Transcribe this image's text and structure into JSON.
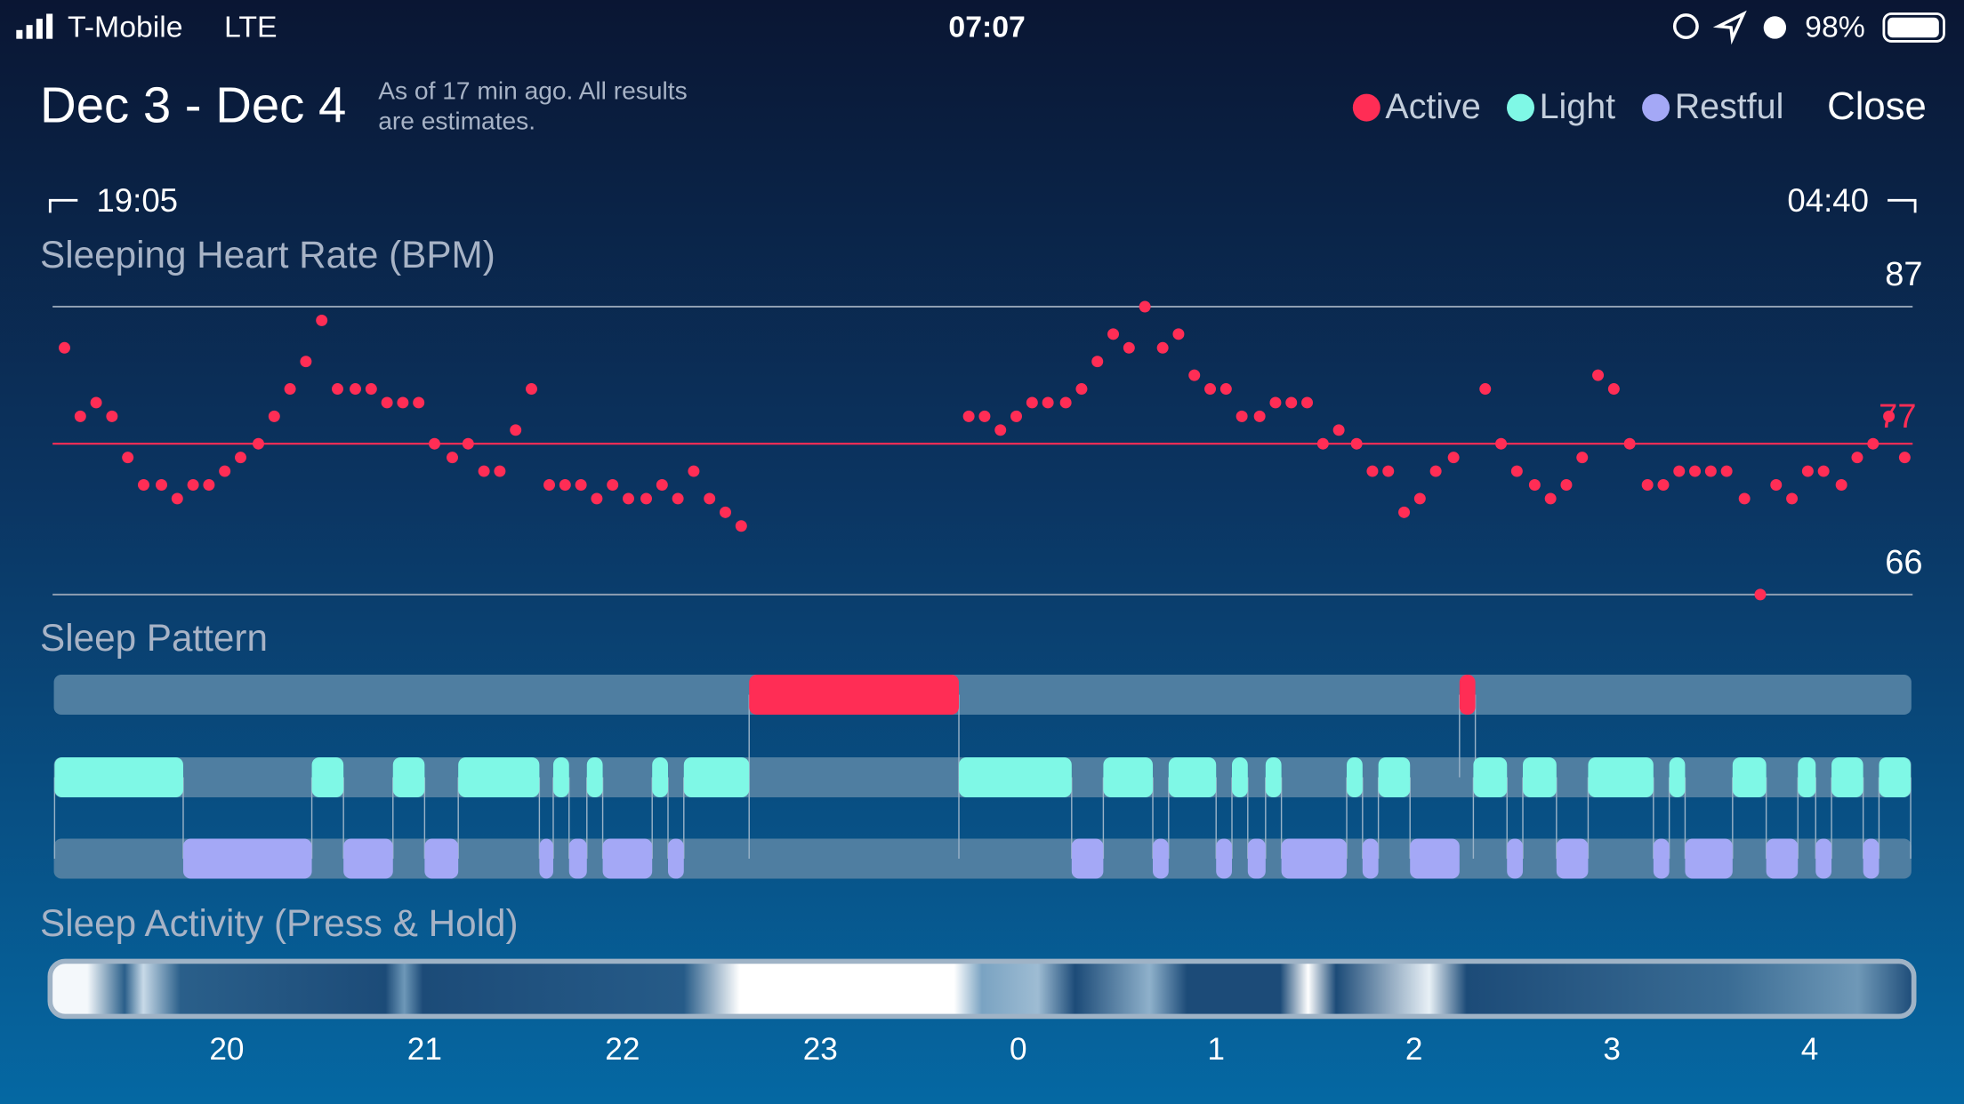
{
  "status_bar": {
    "carrier": "T-Mobile",
    "network": "LTE",
    "time": "07:07",
    "battery": "98%"
  },
  "header": {
    "title": "Dec 3 - Dec 4",
    "note": [
      "As of 17 min ago. All results",
      "are estimates."
    ],
    "close": "Close"
  },
  "range": {
    "start": "19:05",
    "end": "04:40"
  },
  "chart_data": [
    {
      "type": "scatter",
      "title": "Sleeping Heart Rate (BPM)",
      "color": "#ff2d55",
      "x": [
        19.18,
        19.26,
        19.34,
        19.42,
        19.5,
        19.58,
        19.67,
        19.75,
        19.83,
        19.91,
        19.99,
        20.07,
        20.16,
        20.24,
        20.32,
        20.4,
        20.48,
        20.56,
        20.65,
        20.73,
        20.81,
        20.89,
        20.97,
        21.05,
        21.14,
        21.22,
        21.3,
        21.38,
        21.46,
        21.54,
        21.63,
        21.71,
        21.79,
        21.87,
        21.95,
        22.03,
        22.12,
        22.2,
        22.28,
        22.36,
        22.44,
        22.52,
        22.6,
        23.75,
        23.83,
        23.91,
        23.99,
        24.07,
        24.15,
        24.24,
        24.32,
        24.4,
        24.48,
        24.56,
        24.64,
        24.73,
        24.81,
        24.89,
        24.97,
        25.05,
        25.13,
        25.22,
        25.3,
        25.38,
        25.46,
        25.54,
        25.62,
        25.71,
        25.79,
        25.87,
        25.95,
        26.03,
        26.11,
        26.2,
        26.36,
        26.44,
        26.52,
        26.61,
        26.69,
        26.77,
        26.85,
        26.93,
        27.01,
        27.09,
        27.18,
        27.26,
        27.34,
        27.42,
        27.5,
        27.58,
        27.67,
        27.75,
        27.83,
        27.91,
        27.99,
        28.07,
        28.16,
        28.24,
        28.32,
        28.4,
        28.48
      ],
      "y": [
        84,
        79,
        80,
        79,
        76,
        74,
        74,
        73,
        74,
        74,
        75,
        76,
        77,
        79,
        81,
        83,
        86,
        81,
        81,
        81,
        80,
        80,
        80,
        77,
        76,
        77,
        75,
        75,
        78,
        81,
        74,
        74,
        74,
        73,
        74,
        73,
        73,
        74,
        73,
        75,
        73,
        72,
        71,
        79,
        79,
        78,
        79,
        80,
        80,
        80,
        81,
        83,
        85,
        84,
        87,
        84,
        85,
        82,
        81,
        81,
        79,
        79,
        80,
        80,
        80,
        77,
        78,
        77,
        75,
        75,
        72,
        73,
        75,
        76,
        81,
        77,
        75,
        74,
        73,
        74,
        76,
        82,
        81,
        77,
        74,
        74,
        75,
        75,
        75,
        75,
        73,
        66,
        74,
        73,
        75,
        75,
        74,
        76,
        77,
        79,
        76
      ],
      "xlim": [
        19.12,
        28.52
      ],
      "ylim": [
        66,
        87
      ],
      "yticks": [
        66,
        87
      ],
      "reference_line": 77
    },
    {
      "type": "timeline",
      "title": "Sleep Pattern",
      "xlim": [
        19.12,
        28.52
      ],
      "stages": [
        {
          "name": "Active",
          "color": "#ff2d55",
          "segments": [
            [
              22.64,
              23.7
            ],
            [
              26.23,
              26.31
            ]
          ]
        },
        {
          "name": "Light",
          "color": "#7ff8e6",
          "segments": [
            [
              19.13,
              19.78
            ],
            [
              20.43,
              20.59
            ],
            [
              20.84,
              21.0
            ],
            [
              21.17,
              21.58
            ],
            [
              21.65,
              21.73
            ],
            [
              21.82,
              21.9
            ],
            [
              22.15,
              22.23
            ],
            [
              22.31,
              22.64
            ],
            [
              23.7,
              24.27
            ],
            [
              24.43,
              24.68
            ],
            [
              24.76,
              25.0
            ],
            [
              25.08,
              25.16
            ],
            [
              25.25,
              25.33
            ],
            [
              25.66,
              25.74
            ],
            [
              25.82,
              25.98
            ],
            [
              26.3,
              26.47
            ],
            [
              26.55,
              26.72
            ],
            [
              26.88,
              27.21
            ],
            [
              27.29,
              27.37
            ],
            [
              27.61,
              27.78
            ],
            [
              27.94,
              28.03
            ],
            [
              28.11,
              28.27
            ],
            [
              28.35,
              28.51
            ]
          ]
        },
        {
          "name": "Restful",
          "color": "#a4a8f6",
          "segments": [
            [
              19.78,
              20.43
            ],
            [
              20.59,
              20.84
            ],
            [
              21.0,
              21.17
            ],
            [
              21.58,
              21.65
            ],
            [
              21.73,
              21.82
            ],
            [
              21.9,
              22.15
            ],
            [
              22.23,
              22.31
            ],
            [
              24.27,
              24.43
            ],
            [
              24.68,
              24.76
            ],
            [
              25.0,
              25.08
            ],
            [
              25.16,
              25.25
            ],
            [
              25.33,
              25.66
            ],
            [
              25.74,
              25.82
            ],
            [
              25.98,
              26.23
            ],
            [
              26.47,
              26.55
            ],
            [
              26.72,
              26.88
            ],
            [
              27.21,
              27.29
            ],
            [
              27.37,
              27.61
            ],
            [
              27.78,
              27.94
            ],
            [
              28.03,
              28.11
            ],
            [
              28.27,
              28.35
            ]
          ]
        }
      ]
    },
    {
      "type": "heatstrip",
      "title": "Sleep Activity (Press & Hold)",
      "xlim": [
        19.12,
        28.52
      ],
      "xticks": [
        20,
        21,
        22,
        23,
        {
          "value": 24,
          "label": "0"
        },
        {
          "value": 25,
          "label": "1"
        },
        {
          "value": 26,
          "label": "2"
        },
        {
          "value": 27,
          "label": "3"
        },
        {
          "value": 28,
          "label": "4"
        }
      ]
    }
  ]
}
